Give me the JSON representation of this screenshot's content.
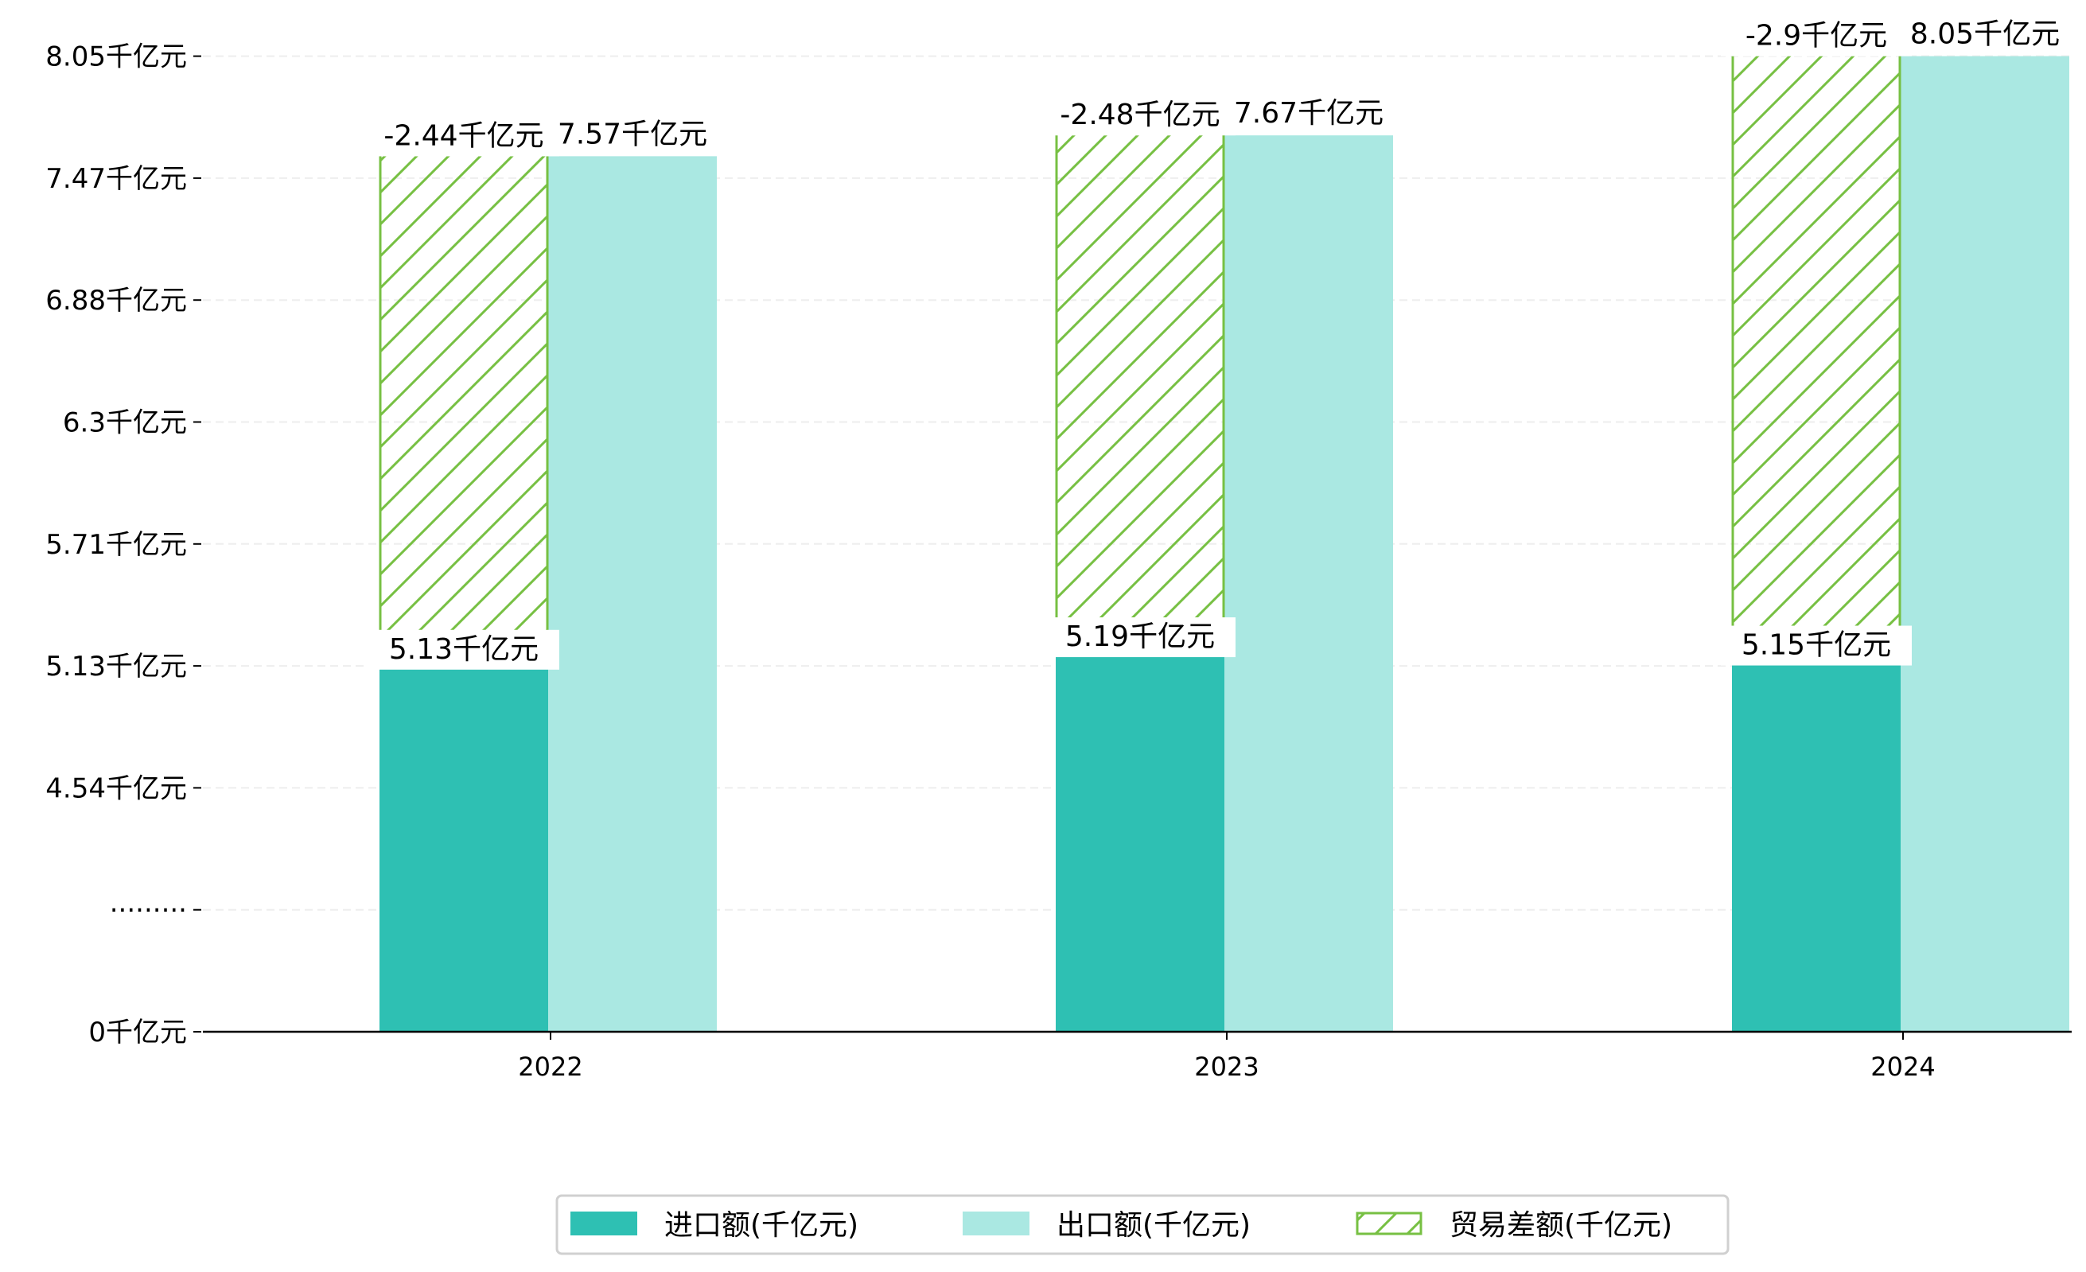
{
  "chart_data": {
    "type": "bar",
    "title": "",
    "xlabel": "",
    "ylabel": "",
    "categories": [
      "2022",
      "2023",
      "2024"
    ],
    "series": [
      {
        "name": "进口额(千亿元)",
        "values": [
          5.13,
          5.19,
          5.15
        ],
        "labels": [
          "5.13千亿元",
          "5.19千亿元",
          "5.15千亿元"
        ],
        "color": "#2ec0b3"
      },
      {
        "name": "出口额(千亿元)",
        "values": [
          7.57,
          7.67,
          8.05
        ],
        "labels": [
          "7.57千亿元",
          "7.67千亿元",
          "8.05千亿元"
        ],
        "color": "#aae8e2"
      },
      {
        "name": "贸易差额(千亿元)",
        "values": [
          -2.44,
          -2.48,
          -2.9
        ],
        "labels": [
          "-2.44千亿元",
          "-2.48千亿元",
          "-2.9千亿元"
        ],
        "color": "#77c043",
        "style": "hatched, stacked on 进口额"
      }
    ],
    "y_ticks": [
      {
        "value": 0,
        "label": "0千亿元"
      },
      {
        "value": null,
        "label": "·········"
      },
      {
        "value": 4.54,
        "label": "4.54千亿元"
      },
      {
        "value": 5.13,
        "label": "5.13千亿元"
      },
      {
        "value": 5.71,
        "label": "5.71千亿元"
      },
      {
        "value": 6.3,
        "label": "6.3千亿元"
      },
      {
        "value": 6.88,
        "label": "6.88千亿元"
      },
      {
        "value": 7.47,
        "label": "7.47千亿元"
      },
      {
        "value": 8.05,
        "label": "8.05千亿元"
      }
    ],
    "ylim": [
      0,
      8.05
    ],
    "y_axis_break": "between 0 and 4.54",
    "grid": "horizontal dashed",
    "legend_position": "bottom-center"
  }
}
